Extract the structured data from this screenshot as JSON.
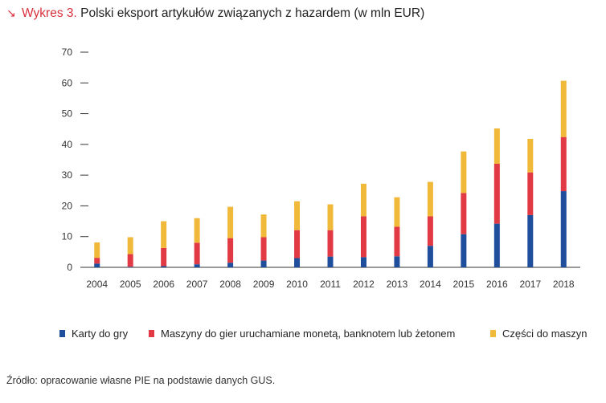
{
  "title": {
    "arrow": "↘",
    "prefix": "Wykres 3.",
    "text": "Polski eksport artykułów związanych z hazardem (w mln EUR)"
  },
  "chart_data": {
    "type": "bar",
    "stacked": true,
    "title": "Polski eksport artykułów związanych z hazardem (w mln EUR)",
    "xlabel": "",
    "ylabel": "",
    "ylim": [
      0,
      70
    ],
    "yticks": [
      0,
      10,
      20,
      30,
      40,
      50,
      60,
      70
    ],
    "grid": false,
    "legend_position": "bottom",
    "categories": [
      "2004",
      "2005",
      "2006",
      "2007",
      "2008",
      "2009",
      "2010",
      "2011",
      "2012",
      "2013",
      "2014",
      "2015",
      "2016",
      "2017",
      "2018"
    ],
    "series": [
      {
        "name": "Karty do gry",
        "color": "#1f4e9c",
        "values": [
          1.2,
          0.2,
          0.4,
          1.0,
          1.5,
          2.2,
          3.0,
          3.5,
          3.3,
          3.6,
          7.0,
          10.8,
          14.2,
          17.0,
          24.8
        ]
      },
      {
        "name": "Maszyny do gier uruchamiane monetą, banknotem lub żetonem",
        "color": "#e23a45",
        "values": [
          1.9,
          4.1,
          5.9,
          7.0,
          8.0,
          7.6,
          9.1,
          8.6,
          13.3,
          9.6,
          9.6,
          13.4,
          19.5,
          13.9,
          17.6
        ]
      },
      {
        "name": "Części do maszyn",
        "color": "#f0b93a",
        "values": [
          5.0,
          5.5,
          8.7,
          8.0,
          10.2,
          7.4,
          9.4,
          8.4,
          10.6,
          9.6,
          11.2,
          13.5,
          11.5,
          10.9,
          18.3
        ]
      }
    ]
  },
  "source": "Źródło: opracowanie własne PIE na podstawie danych GUS."
}
